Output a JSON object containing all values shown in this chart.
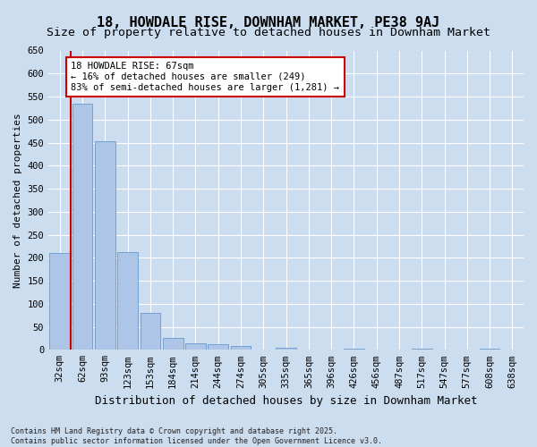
{
  "title": "18, HOWDALE RISE, DOWNHAM MARKET, PE38 9AJ",
  "subtitle": "Size of property relative to detached houses in Downham Market",
  "xlabel": "Distribution of detached houses by size in Downham Market",
  "ylabel": "Number of detached properties",
  "bar_labels": [
    "32sqm",
    "62sqm",
    "93sqm",
    "123sqm",
    "153sqm",
    "184sqm",
    "214sqm",
    "244sqm",
    "274sqm",
    "305sqm",
    "335sqm",
    "365sqm",
    "396sqm",
    "426sqm",
    "456sqm",
    "487sqm",
    "517sqm",
    "547sqm",
    "577sqm",
    "608sqm",
    "638sqm"
  ],
  "bar_values": [
    210,
    535,
    453,
    213,
    80,
    25,
    14,
    12,
    8,
    0,
    5,
    0,
    0,
    3,
    0,
    0,
    2,
    0,
    0,
    3,
    0
  ],
  "bar_color": "#adc6e8",
  "bar_edge_color": "#6699cc",
  "ylim": [
    0,
    650
  ],
  "yticks": [
    0,
    50,
    100,
    150,
    200,
    250,
    300,
    350,
    400,
    450,
    500,
    550,
    600,
    650
  ],
  "property_line_x": 0.5,
  "property_line_color": "#cc0000",
  "annotation_text": "18 HOWDALE RISE: 67sqm\n← 16% of detached houses are smaller (249)\n83% of semi-detached houses are larger (1,281) →",
  "annotation_box_color": "#cc0000",
  "footer_text": "Contains HM Land Registry data © Crown copyright and database right 2025.\nContains public sector information licensed under the Open Government Licence v3.0.",
  "bg_color": "#ccddf0",
  "plot_bg_color": "#ccddf0",
  "grid_color": "#ffffff",
  "title_fontsize": 11,
  "subtitle_fontsize": 9.5,
  "tick_fontsize": 7.5,
  "ylabel_fontsize": 8,
  "xlabel_fontsize": 9
}
